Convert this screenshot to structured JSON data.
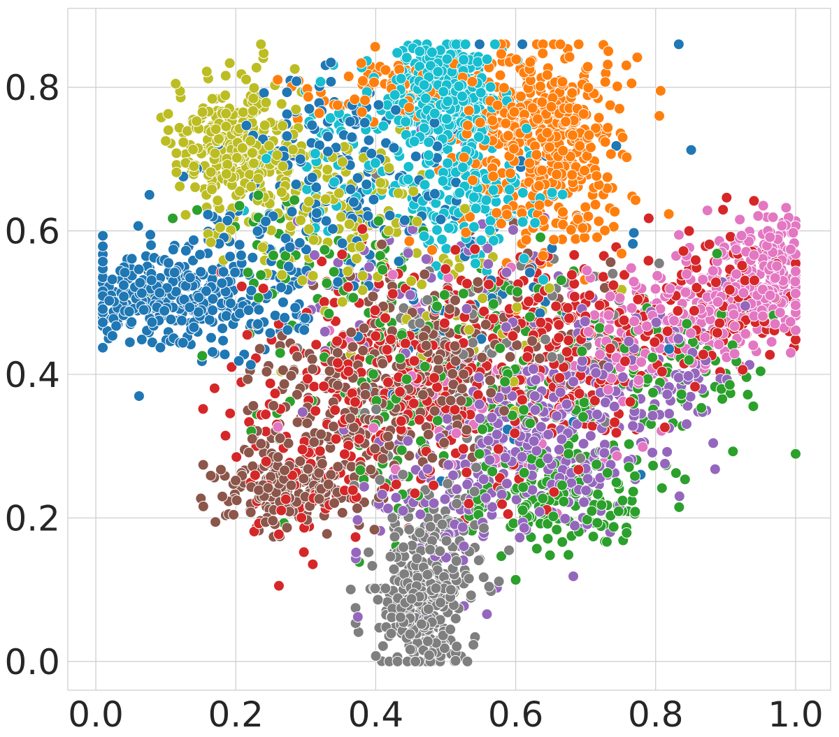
{
  "chart_data": {
    "type": "scatter",
    "title": "",
    "xlabel": "",
    "ylabel": "",
    "xlim": [
      -0.04,
      1.05
    ],
    "ylim": [
      -0.04,
      0.91
    ],
    "x_ticks": [
      {
        "value": 0.0,
        "label": "0.0"
      },
      {
        "value": 0.2,
        "label": "0.2"
      },
      {
        "value": 0.4,
        "label": "0.4"
      },
      {
        "value": 0.6,
        "label": "0.6"
      },
      {
        "value": 0.8,
        "label": "0.8"
      },
      {
        "value": 1.0,
        "label": "1.0"
      }
    ],
    "y_ticks": [
      {
        "value": 0.0,
        "label": "0.0"
      },
      {
        "value": 0.2,
        "label": "0.2"
      },
      {
        "value": 0.4,
        "label": "0.4"
      },
      {
        "value": 0.6,
        "label": "0.6"
      },
      {
        "value": 0.8,
        "label": "0.8"
      }
    ],
    "grid": true,
    "legend": "none",
    "marker_edge_color": "#ffffff",
    "gridline_color": "#cccccc",
    "series": [
      {
        "color": "#1f77b4",
        "clusters": [
          {
            "cx": 0.08,
            "cy": 0.5,
            "sx": 0.05,
            "sy": 0.03,
            "n": 220
          },
          {
            "cx": 0.18,
            "cy": 0.52,
            "sx": 0.06,
            "sy": 0.05,
            "n": 160
          },
          {
            "cx": 0.35,
            "cy": 0.68,
            "sx": 0.08,
            "sy": 0.08,
            "n": 170
          },
          {
            "cx": 0.5,
            "cy": 0.55,
            "sx": 0.15,
            "sy": 0.12,
            "n": 80
          }
        ]
      },
      {
        "color": "#ff7f0e",
        "clusters": [
          {
            "cx": 0.65,
            "cy": 0.74,
            "sx": 0.05,
            "sy": 0.06,
            "n": 380
          },
          {
            "cx": 0.43,
            "cy": 0.8,
            "sx": 0.07,
            "sy": 0.03,
            "n": 90
          },
          {
            "cx": 0.62,
            "cy": 0.62,
            "sx": 0.07,
            "sy": 0.05,
            "n": 70
          }
        ]
      },
      {
        "color": "#2ca02c",
        "clusters": [
          {
            "cx": 0.55,
            "cy": 0.38,
            "sx": 0.14,
            "sy": 0.1,
            "n": 260
          },
          {
            "cx": 0.66,
            "cy": 0.22,
            "sx": 0.06,
            "sy": 0.04,
            "n": 120
          },
          {
            "cx": 0.85,
            "cy": 0.42,
            "sx": 0.06,
            "sy": 0.05,
            "n": 60
          },
          {
            "cx": 0.3,
            "cy": 0.55,
            "sx": 0.1,
            "sy": 0.06,
            "n": 60
          }
        ]
      },
      {
        "color": "#d62728",
        "clusters": [
          {
            "cx": 0.45,
            "cy": 0.4,
            "sx": 0.1,
            "sy": 0.08,
            "n": 330
          },
          {
            "cx": 0.68,
            "cy": 0.44,
            "sx": 0.08,
            "sy": 0.06,
            "n": 190
          },
          {
            "cx": 0.9,
            "cy": 0.5,
            "sx": 0.06,
            "sy": 0.05,
            "n": 110
          },
          {
            "cx": 0.3,
            "cy": 0.26,
            "sx": 0.06,
            "sy": 0.05,
            "n": 70
          }
        ]
      },
      {
        "color": "#9467bd",
        "clusters": [
          {
            "cx": 0.64,
            "cy": 0.31,
            "sx": 0.07,
            "sy": 0.06,
            "n": 260
          },
          {
            "cx": 0.8,
            "cy": 0.4,
            "sx": 0.07,
            "sy": 0.05,
            "n": 100
          },
          {
            "cx": 0.48,
            "cy": 0.25,
            "sx": 0.06,
            "sy": 0.07,
            "n": 90
          },
          {
            "cx": 0.45,
            "cy": 0.55,
            "sx": 0.1,
            "sy": 0.06,
            "n": 50
          }
        ]
      },
      {
        "color": "#8c564b",
        "clusters": [
          {
            "cx": 0.27,
            "cy": 0.24,
            "sx": 0.05,
            "sy": 0.03,
            "n": 200
          },
          {
            "cx": 0.4,
            "cy": 0.36,
            "sx": 0.08,
            "sy": 0.06,
            "n": 250
          },
          {
            "cx": 0.55,
            "cy": 0.46,
            "sx": 0.08,
            "sy": 0.06,
            "n": 120
          }
        ]
      },
      {
        "color": "#e377c2",
        "clusters": [
          {
            "cx": 0.92,
            "cy": 0.51,
            "sx": 0.05,
            "sy": 0.04,
            "n": 200
          },
          {
            "cx": 0.97,
            "cy": 0.57,
            "sx": 0.025,
            "sy": 0.03,
            "n": 70
          },
          {
            "cx": 0.8,
            "cy": 0.46,
            "sx": 0.06,
            "sy": 0.04,
            "n": 110
          },
          {
            "cx": 0.55,
            "cy": 0.4,
            "sx": 0.12,
            "sy": 0.1,
            "n": 60
          }
        ]
      },
      {
        "color": "#7f7f7f",
        "clusters": [
          {
            "cx": 0.465,
            "cy": 0.07,
            "sx": 0.03,
            "sy": 0.045,
            "n": 280
          },
          {
            "cx": 0.48,
            "cy": 0.17,
            "sx": 0.05,
            "sy": 0.045,
            "n": 130
          },
          {
            "cx": 0.58,
            "cy": 0.44,
            "sx": 0.1,
            "sy": 0.08,
            "n": 90
          }
        ]
      },
      {
        "color": "#bcbd22",
        "clusters": [
          {
            "cx": 0.2,
            "cy": 0.72,
            "sx": 0.045,
            "sy": 0.045,
            "n": 300
          },
          {
            "cx": 0.32,
            "cy": 0.63,
            "sx": 0.07,
            "sy": 0.05,
            "n": 120
          },
          {
            "cx": 0.48,
            "cy": 0.48,
            "sx": 0.12,
            "sy": 0.08,
            "n": 50
          }
        ]
      },
      {
        "color": "#17becf",
        "clusters": [
          {
            "cx": 0.5,
            "cy": 0.79,
            "sx": 0.04,
            "sy": 0.04,
            "n": 330
          },
          {
            "cx": 0.53,
            "cy": 0.65,
            "sx": 0.06,
            "sy": 0.05,
            "n": 140
          },
          {
            "cx": 0.37,
            "cy": 0.72,
            "sx": 0.07,
            "sy": 0.06,
            "n": 70
          }
        ]
      }
    ]
  }
}
